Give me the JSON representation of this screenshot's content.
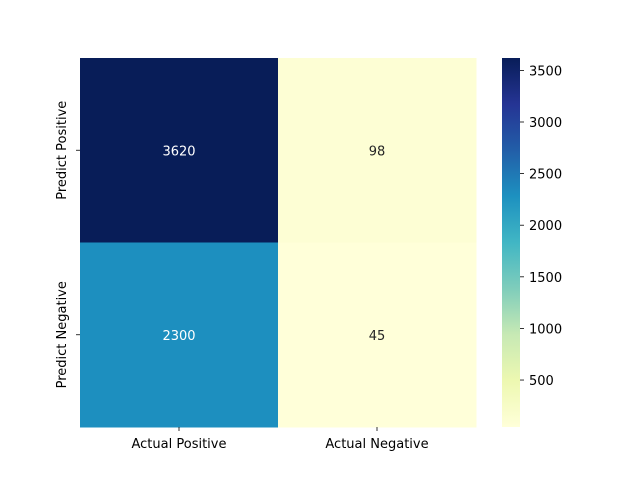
{
  "chart_data": {
    "type": "heatmap",
    "title": "",
    "xlabel": "",
    "ylabel": "",
    "x_labels": [
      "Actual Positive",
      "Actual Negative"
    ],
    "y_labels": [
      "Predict Positive",
      "Predict Negative"
    ],
    "values": [
      [
        3620,
        98
      ],
      [
        2300,
        45
      ]
    ],
    "colormap": "YlGnBu",
    "colorbar": {
      "range": [
        45,
        3620
      ],
      "ticks": [
        500,
        1000,
        1500,
        2000,
        2500,
        3000,
        3500
      ],
      "tick_labels": [
        "500",
        "1000",
        "1500",
        "2000",
        "2500",
        "3000",
        "3500"
      ]
    },
    "colors": {
      "low": "#ffffd9",
      "high": "#081d58",
      "text_on_dark": "#ffffff",
      "text_on_light": "#262626"
    }
  }
}
